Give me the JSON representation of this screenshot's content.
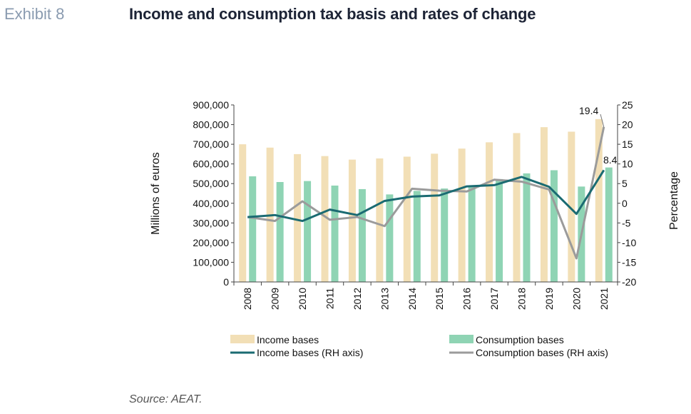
{
  "header": {
    "exhibit": "Exhibit 8",
    "title": "Income and consumption tax basis and rates of change"
  },
  "source": "Source: AEAT.",
  "chart_data": {
    "type": "bar",
    "categories": [
      "2008",
      "2009",
      "2010",
      "2011",
      "2012",
      "2013",
      "2014",
      "2015",
      "2016",
      "2017",
      "2018",
      "2019",
      "2020",
      "2021"
    ],
    "series": [
      {
        "name": "Income bases",
        "kind": "bar",
        "axis": "left",
        "color": "#f2dfb6",
        "values": [
          700000,
          683000,
          650000,
          640000,
          622000,
          628000,
          637000,
          652000,
          678000,
          710000,
          757000,
          787000,
          764000,
          828000
        ]
      },
      {
        "name": "Consumption bases",
        "kind": "bar",
        "axis": "left",
        "color": "#8fd4b4",
        "values": [
          537000,
          508000,
          513000,
          490000,
          472000,
          445000,
          463000,
          475000,
          488000,
          523000,
          552000,
          568000,
          485000,
          582000
        ]
      },
      {
        "name": "Income bases (RH axis)",
        "kind": "line",
        "axis": "right",
        "color": "#1b6b72",
        "values": [
          -3.5,
          -3.0,
          -4.5,
          -1.6,
          -3.0,
          0.6,
          1.7,
          2.0,
          4.3,
          4.6,
          6.7,
          4.2,
          -2.7,
          8.4
        ]
      },
      {
        "name": "Consumption bases (RH axis)",
        "kind": "line",
        "axis": "right",
        "color": "#9b9b9b",
        "values": [
          -3.5,
          -4.5,
          0.5,
          -4.2,
          -3.5,
          -5.8,
          3.7,
          3.2,
          3.0,
          6.0,
          5.5,
          3.5,
          -14.0,
          19.4
        ]
      }
    ],
    "ylabel": "Millions  of euros",
    "y2label": "Percentage",
    "ylim": [
      0,
      900000
    ],
    "y2lim": [
      -20,
      25
    ],
    "yticks": [
      "0",
      "100,000",
      "200,000",
      "300,000",
      "400,000",
      "500,000",
      "600,000",
      "700,000",
      "800,000",
      "900,000"
    ],
    "y2ticks": [
      "-20",
      "-15",
      "-10",
      "-5",
      "0",
      "5",
      "10",
      "15",
      "20",
      "25"
    ],
    "annotations": [
      {
        "text": "19.4",
        "series": "Consumption bases (RH axis)",
        "index": 13
      },
      {
        "text": "8.4",
        "series": "Income bases (RH axis)",
        "index": 13
      }
    ],
    "legend": "bottom",
    "grid": false
  }
}
